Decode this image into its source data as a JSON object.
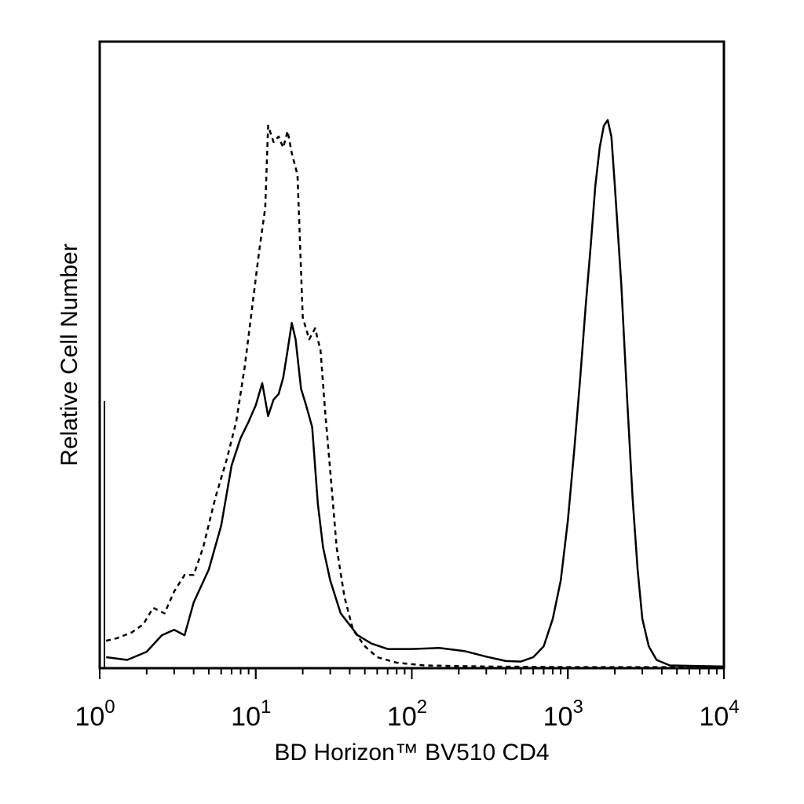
{
  "chart_data": {
    "type": "line",
    "xlabel": "BD Horizon™ BV510 CD4",
    "ylabel": "Relative Cell Number",
    "x_scale": "log",
    "xlim": [
      1,
      10000
    ],
    "ylim": [
      0,
      1
    ],
    "grid": false,
    "legend": "none",
    "x_ticks": [
      {
        "value": 1,
        "base": "10",
        "exp": "0"
      },
      {
        "value": 10,
        "base": "10",
        "exp": "1"
      },
      {
        "value": 100,
        "base": "10",
        "exp": "2"
      },
      {
        "value": 1000,
        "base": "10",
        "exp": "3"
      },
      {
        "value": 10000,
        "base": "10",
        "exp": "4"
      }
    ],
    "series": [
      {
        "style": "dashed",
        "points": [
          [
            1.1,
            0.05
          ],
          [
            1.3,
            0.055
          ],
          [
            1.6,
            0.065
          ],
          [
            1.9,
            0.08
          ],
          [
            2.2,
            0.11
          ],
          [
            2.6,
            0.1
          ],
          [
            3.0,
            0.14
          ],
          [
            3.5,
            0.17
          ],
          [
            4.0,
            0.17
          ],
          [
            4.6,
            0.22
          ],
          [
            5.5,
            0.31
          ],
          [
            6.5,
            0.38
          ],
          [
            7.5,
            0.45
          ],
          [
            8.5,
            0.55
          ],
          [
            9.5,
            0.66
          ],
          [
            10.5,
            0.76
          ],
          [
            11.5,
            0.84
          ],
          [
            12.0,
            0.99
          ],
          [
            13.0,
            0.96
          ],
          [
            14.0,
            0.97
          ],
          [
            15.0,
            0.95
          ],
          [
            16.0,
            0.98
          ],
          [
            17.0,
            0.94
          ],
          [
            18.5,
            0.9
          ],
          [
            20.0,
            0.64
          ],
          [
            22.0,
            0.6
          ],
          [
            24.0,
            0.62
          ],
          [
            26.0,
            0.58
          ],
          [
            28.0,
            0.46
          ],
          [
            30.0,
            0.36
          ],
          [
            33.0,
            0.22
          ],
          [
            37.0,
            0.13
          ],
          [
            42.0,
            0.07
          ],
          [
            50.0,
            0.04
          ],
          [
            60.0,
            0.02
          ],
          [
            80.0,
            0.01
          ],
          [
            120.0,
            0.005
          ],
          [
            300.0,
            0.003
          ],
          [
            1000.0,
            0.002
          ],
          [
            10000.0,
            0.002
          ]
        ]
      },
      {
        "style": "solid",
        "points": [
          [
            1.1,
            0.02
          ],
          [
            1.5,
            0.015
          ],
          [
            2.0,
            0.03
          ],
          [
            2.5,
            0.06
          ],
          [
            3.0,
            0.07
          ],
          [
            3.5,
            0.06
          ],
          [
            4.0,
            0.12
          ],
          [
            5.0,
            0.18
          ],
          [
            6.0,
            0.26
          ],
          [
            7.0,
            0.37
          ],
          [
            8.0,
            0.42
          ],
          [
            9.0,
            0.45
          ],
          [
            10.0,
            0.48
          ],
          [
            11.0,
            0.52
          ],
          [
            12.0,
            0.46
          ],
          [
            13.0,
            0.49
          ],
          [
            14.0,
            0.5
          ],
          [
            15.0,
            0.53
          ],
          [
            16.0,
            0.58
          ],
          [
            17.0,
            0.63
          ],
          [
            18.0,
            0.6
          ],
          [
            19.5,
            0.51
          ],
          [
            21.0,
            0.48
          ],
          [
            23.0,
            0.44
          ],
          [
            25.0,
            0.3
          ],
          [
            27.0,
            0.22
          ],
          [
            30.0,
            0.16
          ],
          [
            35.0,
            0.1
          ],
          [
            45.0,
            0.06
          ],
          [
            55.0,
            0.045
          ],
          [
            70.0,
            0.035
          ],
          [
            100.0,
            0.035
          ],
          [
            150.0,
            0.037
          ],
          [
            220.0,
            0.031
          ],
          [
            300.0,
            0.021
          ],
          [
            400.0,
            0.013
          ],
          [
            500.0,
            0.012
          ],
          [
            600.0,
            0.02
          ],
          [
            700.0,
            0.04
          ],
          [
            800.0,
            0.09
          ],
          [
            900.0,
            0.16
          ],
          [
            1000.0,
            0.27
          ],
          [
            1100.0,
            0.4
          ],
          [
            1200.0,
            0.53
          ],
          [
            1300.0,
            0.66
          ],
          [
            1400.0,
            0.77
          ],
          [
            1500.0,
            0.88
          ],
          [
            1600.0,
            0.95
          ],
          [
            1700.0,
            0.99
          ],
          [
            1800.0,
            1.0
          ],
          [
            1900.0,
            0.97
          ],
          [
            2000.0,
            0.88
          ],
          [
            2200.0,
            0.7
          ],
          [
            2400.0,
            0.49
          ],
          [
            2600.0,
            0.31
          ],
          [
            2800.0,
            0.18
          ],
          [
            3000.0,
            0.09
          ],
          [
            3300.0,
            0.04
          ],
          [
            3700.0,
            0.015
          ],
          [
            4500.0,
            0.005
          ],
          [
            10000.0,
            0.003
          ]
        ]
      }
    ]
  }
}
